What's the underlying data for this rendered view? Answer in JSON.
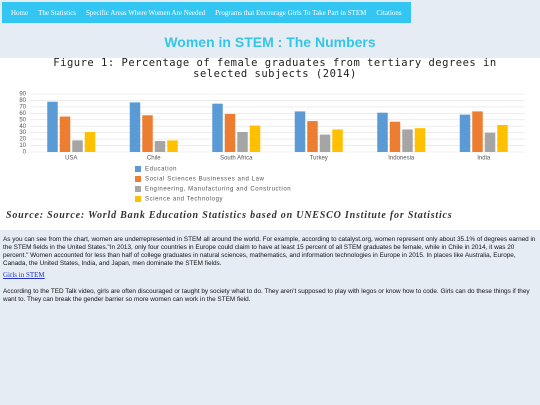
{
  "nav": [
    "Home",
    "The Statistics",
    "Specific Areas Where Women Are Needed",
    "Programs that Encourage Girls To Take Part in STEM",
    "Citations"
  ],
  "heading": "Women in STEM : The Numbers",
  "chart_data": {
    "type": "bar",
    "title": "Figure 1: Percentage of female graduates from tertiary degrees in selected subjects (2014)",
    "categories": [
      "USA",
      "Chile",
      "South Africa",
      "Turkey",
      "Indonesia",
      "India"
    ],
    "series": [
      {
        "name": "Education",
        "color": "#5b9bd5",
        "values": [
          78,
          77,
          75,
          63,
          61,
          58
        ]
      },
      {
        "name": "Social Sciences Businesses and Law",
        "color": "#ed7d31",
        "values": [
          55,
          57,
          59,
          48,
          47,
          63
        ]
      },
      {
        "name": "Engineering, Manufacturing and Construction",
        "color": "#a5a5a5",
        "values": [
          18,
          17,
          31,
          27,
          35,
          30
        ]
      },
      {
        "name": "Science and Technology",
        "color": "#ffc000",
        "values": [
          31,
          18,
          41,
          35,
          37,
          42
        ]
      }
    ],
    "ylim": [
      0,
      90
    ],
    "yticks": [
      0,
      10,
      20,
      30,
      40,
      50,
      60,
      70,
      80,
      90
    ],
    "grid": true,
    "legend": "bottom",
    "source": "Source: Source: World Bank Education Statistics based on UNESCO Institute for Statistics"
  },
  "paragraphs": [
    "As you can see from the chart, women are underrepresented in STEM all around the world. For example, according to catalyst.org, women represent only about 35.1% of degrees earned in the STEM fields in the United States.\"In 2013, only four countries in Europe could claim to have at least 15 percent of all STEM graduates be female, while in Chile in 2014, it was 20 percent.\" Women accounted for less than half of college graduates in natural sciences, mathematics, and information technologies in Europe in 2015. In places like Australia, Europe, Canada, the United States, India, and Japan, men dominate the STEM fields.",
    "According to the TED Talk video, girls are often discouraged or taught by society what to do. They aren't supposed to play with legos or know how to code. Girls can do these things if they want to. They can break the gender barrier so more women can work in the STEM field."
  ],
  "link": "Girls in STEM"
}
